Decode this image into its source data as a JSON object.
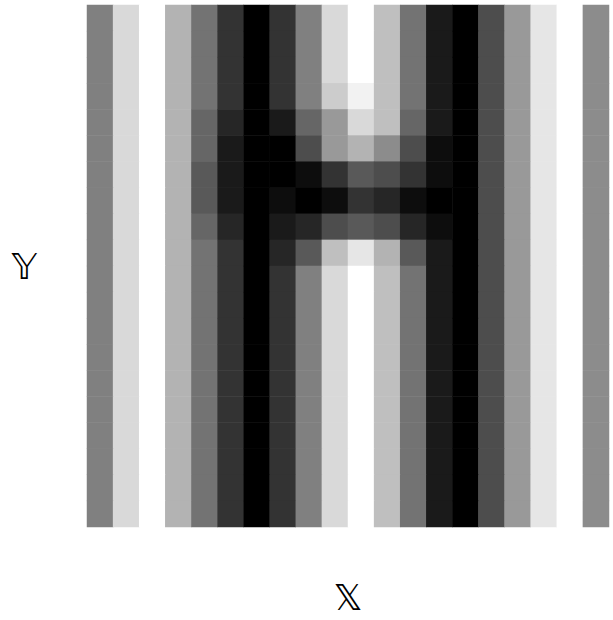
{
  "chart_data": {
    "type": "heatmap",
    "x_label": "𝕏",
    "y_label": "𝕐",
    "tick_labels": false,
    "value_range": [
      0,
      1
    ],
    "cells": [
      [
        0.5,
        0.85,
        1,
        0.7,
        0.45,
        0.2,
        0,
        0.2,
        0.5,
        0.85,
        1,
        0.75,
        0.45,
        0.1,
        0,
        0.3,
        0.6,
        0.9,
        1,
        0.55
      ],
      [
        0.5,
        0.85,
        1,
        0.7,
        0.45,
        0.2,
        0,
        0.2,
        0.5,
        0.85,
        1,
        0.75,
        0.45,
        0.1,
        0,
        0.3,
        0.6,
        0.9,
        1,
        0.55
      ],
      [
        0.5,
        0.85,
        1,
        0.7,
        0.45,
        0.2,
        0,
        0.2,
        0.5,
        0.85,
        1,
        0.75,
        0.45,
        0.1,
        0,
        0.3,
        0.6,
        0.9,
        1,
        0.55
      ],
      [
        0.5,
        0.85,
        1,
        0.7,
        0.45,
        0.2,
        0,
        0.2,
        0.5,
        0.8,
        0.95,
        0.75,
        0.45,
        0.1,
        0,
        0.3,
        0.6,
        0.9,
        1,
        0.55
      ],
      [
        0.5,
        0.85,
        1,
        0.7,
        0.4,
        0.15,
        0,
        0.1,
        0.4,
        0.6,
        0.85,
        0.75,
        0.4,
        0.1,
        0,
        0.3,
        0.6,
        0.9,
        1,
        0.55
      ],
      [
        0.5,
        0.85,
        1,
        0.7,
        0.4,
        0.1,
        0,
        0,
        0.3,
        0.6,
        0.7,
        0.55,
        0.3,
        0.05,
        0,
        0.3,
        0.6,
        0.9,
        1,
        0.55
      ],
      [
        0.5,
        0.85,
        1,
        0.7,
        0.35,
        0.1,
        0,
        0,
        0.05,
        0.2,
        0.35,
        0.3,
        0.2,
        0.05,
        0,
        0.3,
        0.6,
        0.9,
        1,
        0.55
      ],
      [
        0.5,
        0.85,
        1,
        0.7,
        0.35,
        0.1,
        0,
        0.05,
        0,
        0.05,
        0.2,
        0.15,
        0.05,
        0,
        0,
        0.3,
        0.6,
        0.9,
        1,
        0.55
      ],
      [
        0.5,
        0.85,
        1,
        0.7,
        0.4,
        0.15,
        0,
        0.1,
        0.15,
        0.3,
        0.35,
        0.3,
        0.15,
        0.05,
        0,
        0.3,
        0.6,
        0.9,
        1,
        0.55
      ],
      [
        0.5,
        0.85,
        1,
        0.7,
        0.45,
        0.2,
        0,
        0.15,
        0.35,
        0.75,
        0.9,
        0.7,
        0.35,
        0.1,
        0,
        0.3,
        0.6,
        0.9,
        1,
        0.55
      ],
      [
        0.5,
        0.85,
        1,
        0.7,
        0.45,
        0.2,
        0,
        0.2,
        0.5,
        0.85,
        1,
        0.75,
        0.45,
        0.1,
        0,
        0.3,
        0.6,
        0.9,
        1,
        0.55
      ],
      [
        0.5,
        0.85,
        1,
        0.7,
        0.45,
        0.2,
        0,
        0.2,
        0.5,
        0.85,
        1,
        0.75,
        0.45,
        0.1,
        0,
        0.3,
        0.6,
        0.9,
        1,
        0.55
      ],
      [
        0.5,
        0.85,
        1,
        0.7,
        0.45,
        0.2,
        0,
        0.2,
        0.5,
        0.85,
        1,
        0.75,
        0.45,
        0.1,
        0,
        0.3,
        0.6,
        0.9,
        1,
        0.55
      ],
      [
        0.5,
        0.85,
        1,
        0.7,
        0.45,
        0.2,
        0,
        0.2,
        0.5,
        0.85,
        1,
        0.75,
        0.45,
        0.1,
        0,
        0.3,
        0.6,
        0.9,
        1,
        0.55
      ],
      [
        0.5,
        0.85,
        1,
        0.7,
        0.45,
        0.2,
        0,
        0.2,
        0.5,
        0.85,
        1,
        0.75,
        0.45,
        0.1,
        0,
        0.3,
        0.6,
        0.9,
        1,
        0.55
      ],
      [
        0.5,
        0.85,
        1,
        0.7,
        0.45,
        0.2,
        0,
        0.2,
        0.5,
        0.85,
        1,
        0.75,
        0.45,
        0.1,
        0,
        0.3,
        0.6,
        0.9,
        1,
        0.55
      ],
      [
        0.5,
        0.85,
        1,
        0.7,
        0.45,
        0.2,
        0,
        0.2,
        0.5,
        0.85,
        1,
        0.75,
        0.45,
        0.1,
        0,
        0.3,
        0.6,
        0.9,
        1,
        0.55
      ],
      [
        0.5,
        0.85,
        1,
        0.7,
        0.45,
        0.2,
        0,
        0.2,
        0.5,
        0.85,
        1,
        0.75,
        0.45,
        0.1,
        0,
        0.3,
        0.6,
        0.9,
        1,
        0.55
      ],
      [
        0.5,
        0.85,
        1,
        0.7,
        0.45,
        0.2,
        0,
        0.2,
        0.5,
        0.85,
        1,
        0.75,
        0.45,
        0.1,
        0,
        0.3,
        0.6,
        0.9,
        1,
        0.55
      ],
      [
        0.5,
        0.85,
        1,
        0.7,
        0.45,
        0.2,
        0,
        0.2,
        0.5,
        0.85,
        1,
        0.75,
        0.45,
        0.1,
        0,
        0.3,
        0.6,
        0.9,
        1,
        0.55
      ]
    ]
  }
}
